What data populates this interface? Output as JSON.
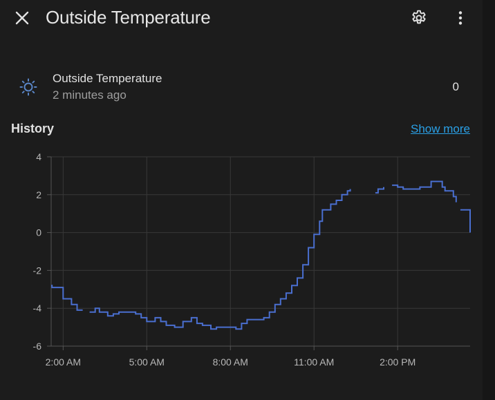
{
  "header": {
    "title": "Outside Temperature",
    "close_icon": "close-icon",
    "settings_icon": "gear-icon",
    "more_icon": "more-vertical-icon"
  },
  "entity": {
    "icon": "thermometer-sun-icon",
    "name": "Outside Temperature",
    "last_changed": "2 minutes ago",
    "state": "0"
  },
  "history": {
    "title": "History",
    "show_more": "Show more"
  },
  "colors": {
    "background": "#1c1c1c",
    "line": "#4a6fd0",
    "link": "#2aa0e6",
    "grid": "#3a3a3a"
  },
  "chart_data": {
    "type": "line",
    "x_ticks": [
      "2:00 AM",
      "5:00 AM",
      "8:00 AM",
      "11:00 AM",
      "2:00 PM"
    ],
    "y_ticks": [
      "4",
      "2",
      "0",
      "-2",
      "-4",
      "-6"
    ],
    "ylim": [
      -6,
      4
    ],
    "xlim_hours": [
      1.57,
      16.6
    ],
    "grid": true,
    "series": [
      {
        "values": [
          [
            1.57,
            -2.8
          ],
          [
            1.6,
            -2.9
          ],
          [
            2.0,
            -3.5
          ],
          [
            2.3,
            -3.8
          ],
          [
            2.5,
            -4.1
          ],
          [
            2.7,
            -4.1
          ],
          [
            2.8,
            null
          ],
          [
            2.95,
            -4.2
          ],
          [
            3.15,
            -4.0
          ],
          [
            3.3,
            -4.2
          ],
          [
            3.6,
            -4.4
          ],
          [
            3.8,
            -4.3
          ],
          [
            4.0,
            -4.2
          ],
          [
            4.4,
            -4.2
          ],
          [
            4.6,
            -4.3
          ],
          [
            4.8,
            -4.5
          ],
          [
            5.0,
            -4.7
          ],
          [
            5.3,
            -4.5
          ],
          [
            5.5,
            -4.7
          ],
          [
            5.7,
            -4.9
          ],
          [
            6.0,
            -5.0
          ],
          [
            6.3,
            -4.7
          ],
          [
            6.6,
            -4.5
          ],
          [
            6.8,
            -4.8
          ],
          [
            7.0,
            -4.9
          ],
          [
            7.3,
            -5.1
          ],
          [
            7.5,
            -5.0
          ],
          [
            8.0,
            -5.0
          ],
          [
            8.2,
            -5.1
          ],
          [
            8.4,
            -4.8
          ],
          [
            8.6,
            -4.6
          ],
          [
            9.0,
            -4.6
          ],
          [
            9.2,
            -4.5
          ],
          [
            9.4,
            -4.2
          ],
          [
            9.6,
            -3.8
          ],
          [
            9.8,
            -3.5
          ],
          [
            10.0,
            -3.2
          ],
          [
            10.2,
            -2.8
          ],
          [
            10.4,
            -2.4
          ],
          [
            10.6,
            -1.7
          ],
          [
            10.8,
            -0.8
          ],
          [
            11.0,
            -0.1
          ],
          [
            11.2,
            0.6
          ],
          [
            11.3,
            1.2
          ],
          [
            11.6,
            1.5
          ],
          [
            11.8,
            1.7
          ],
          [
            12.0,
            2.0
          ],
          [
            12.2,
            2.2
          ],
          [
            12.3,
            2.3
          ],
          [
            12.4,
            null
          ],
          [
            12.7,
            2.2
          ],
          [
            12.8,
            null
          ],
          [
            13.2,
            2.1
          ],
          [
            13.3,
            2.3
          ],
          [
            13.5,
            2.4
          ],
          [
            13.6,
            null
          ],
          [
            13.8,
            2.5
          ],
          [
            14.0,
            2.4
          ],
          [
            14.2,
            2.3
          ],
          [
            14.4,
            2.3
          ],
          [
            14.6,
            2.3
          ],
          [
            14.8,
            2.4
          ],
          [
            15.0,
            2.4
          ],
          [
            15.2,
            2.7
          ],
          [
            15.5,
            2.7
          ],
          [
            15.6,
            2.4
          ],
          [
            15.7,
            2.2
          ],
          [
            16.0,
            1.9
          ],
          [
            16.1,
            1.6
          ],
          [
            16.2,
            null
          ],
          [
            16.25,
            1.2
          ],
          [
            16.58,
            1.2
          ],
          [
            16.6,
            0.0
          ]
        ]
      }
    ]
  }
}
